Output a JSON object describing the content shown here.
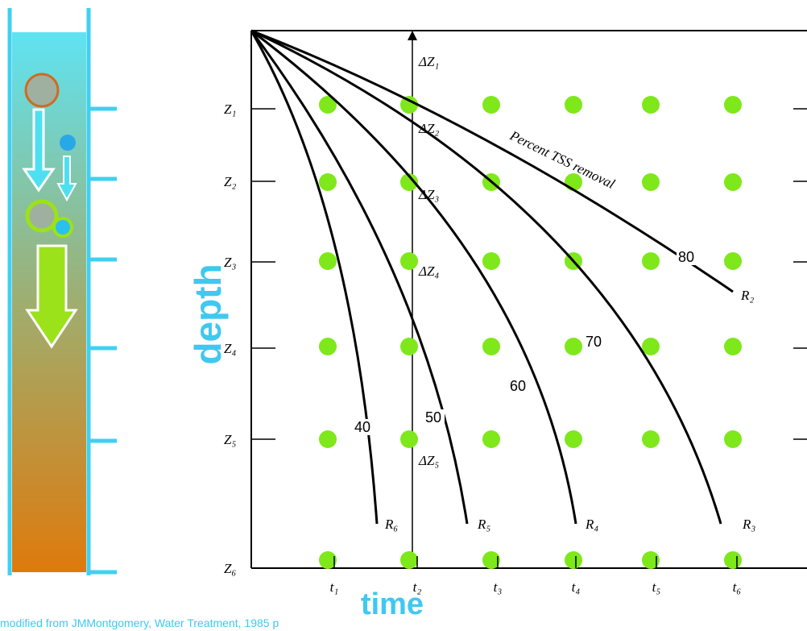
{
  "axes": {
    "y_label": "depth",
    "x_label": "time"
  },
  "depths": [
    "Z₁",
    "Z₂",
    "Z₃",
    "Z₄",
    "Z₅",
    "Z₆"
  ],
  "times": [
    "t₁",
    "t₂",
    "t₃",
    "t₄",
    "t₅",
    "t₆"
  ],
  "intervals": [
    "ΔZ₁",
    "ΔZ₂",
    "ΔZ₃",
    "ΔZ₄",
    "ΔZ₅"
  ],
  "curves": [
    {
      "percent": "80",
      "name": "R₂"
    },
    {
      "percent": "70",
      "name": "R₃"
    },
    {
      "percent": "60",
      "name": "R₄"
    },
    {
      "percent": "50",
      "name": "R₅"
    },
    {
      "percent": "40",
      "name": "R₆"
    }
  ],
  "curve_note": "Percent TSS removal",
  "caption": "modified from JMMontgomery, Water Treatment, 1985 p"
}
